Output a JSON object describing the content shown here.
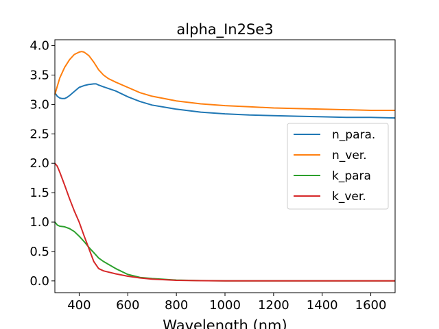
{
  "chart_data": {
    "type": "line",
    "title": "alpha_In2Se3",
    "xlabel": "Wavelength (nm)",
    "ylabel": "",
    "xlim": [
      300,
      1700
    ],
    "ylim": [
      -0.2,
      4.1
    ],
    "grid": false,
    "legend_position": "center-right",
    "xticks": [
      400,
      600,
      800,
      1000,
      1200,
      1400,
      1600
    ],
    "yticks": [
      0.0,
      0.5,
      1.0,
      1.5,
      2.0,
      2.5,
      3.0,
      3.5,
      4.0
    ],
    "xtick_labels": [
      "400",
      "600",
      "800",
      "1000",
      "1200",
      "1400",
      "1600"
    ],
    "ytick_labels": [
      "0.0",
      "0.5",
      "1.0",
      "1.5",
      "2.0",
      "2.5",
      "3.0",
      "3.5",
      "4.0"
    ],
    "series": [
      {
        "name": "n_para.",
        "color": "#1f77b4",
        "x": [
          300,
          310,
          320,
          330,
          340,
          350,
          360,
          380,
          400,
          420,
          440,
          460,
          470,
          480,
          500,
          550,
          600,
          650,
          700,
          800,
          900,
          1000,
          1100,
          1200,
          1300,
          1400,
          1500,
          1600,
          1700
        ],
        "y": [
          3.2,
          3.14,
          3.11,
          3.1,
          3.1,
          3.12,
          3.15,
          3.22,
          3.29,
          3.32,
          3.34,
          3.35,
          3.35,
          3.33,
          3.3,
          3.23,
          3.13,
          3.05,
          2.99,
          2.92,
          2.87,
          2.84,
          2.82,
          2.81,
          2.8,
          2.79,
          2.78,
          2.78,
          2.77
        ]
      },
      {
        "name": "n_ver.",
        "color": "#ff7f0e",
        "x": [
          300,
          320,
          340,
          360,
          380,
          400,
          410,
          420,
          440,
          460,
          480,
          500,
          520,
          550,
          600,
          650,
          700,
          800,
          900,
          1000,
          1100,
          1200,
          1300,
          1400,
          1500,
          1600,
          1700
        ],
        "y": [
          3.17,
          3.45,
          3.63,
          3.76,
          3.85,
          3.89,
          3.9,
          3.89,
          3.83,
          3.72,
          3.59,
          3.5,
          3.44,
          3.38,
          3.29,
          3.2,
          3.14,
          3.06,
          3.01,
          2.98,
          2.96,
          2.94,
          2.93,
          2.92,
          2.91,
          2.9,
          2.9
        ]
      },
      {
        "name": "k_para",
        "color": "#2ca02c",
        "x": [
          300,
          310,
          320,
          340,
          360,
          380,
          400,
          420,
          440,
          460,
          480,
          500,
          550,
          600,
          650,
          700,
          800,
          900,
          1000,
          1200,
          1400,
          1600,
          1700
        ],
        "y": [
          1.0,
          0.95,
          0.93,
          0.92,
          0.89,
          0.84,
          0.76,
          0.67,
          0.57,
          0.48,
          0.39,
          0.33,
          0.21,
          0.11,
          0.06,
          0.04,
          0.015,
          0.005,
          0.002,
          0.001,
          0.001,
          0.001,
          0.001
        ]
      },
      {
        "name": "k_ver.",
        "color": "#d62728",
        "x": [
          300,
          310,
          320,
          340,
          360,
          380,
          400,
          420,
          440,
          460,
          480,
          500,
          550,
          600,
          650,
          700,
          800,
          900,
          1000,
          1200,
          1400,
          1600,
          1700
        ],
        "y": [
          2.0,
          1.95,
          1.85,
          1.63,
          1.4,
          1.19,
          1.0,
          0.77,
          0.55,
          0.33,
          0.21,
          0.17,
          0.12,
          0.08,
          0.05,
          0.03,
          0.01,
          0.004,
          0.001,
          0.001,
          0.001,
          0.001,
          0.001
        ]
      }
    ]
  }
}
